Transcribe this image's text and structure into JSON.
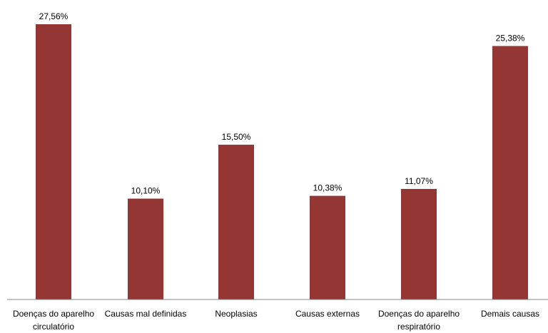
{
  "chart_data": {
    "type": "bar",
    "categories": [
      [
        "Doenças do aparelho",
        "circulatório"
      ],
      [
        "Causas mal definidas"
      ],
      [
        "Neoplasias"
      ],
      [
        "Causas externas"
      ],
      [
        "Doenças do aparelho",
        "respiratório"
      ],
      [
        "Demais causas"
      ]
    ],
    "values": [
      27.56,
      10.1,
      15.5,
      10.38,
      11.07,
      25.38
    ],
    "value_labels": [
      "27,56%",
      "10,10%",
      "15,50%",
      "10,38%",
      "11,07%",
      "25,38%"
    ],
    "ylim": [
      0,
      30
    ],
    "grid": false,
    "legend": "none",
    "bar_color": "#943634",
    "axis_color": "#868686"
  }
}
